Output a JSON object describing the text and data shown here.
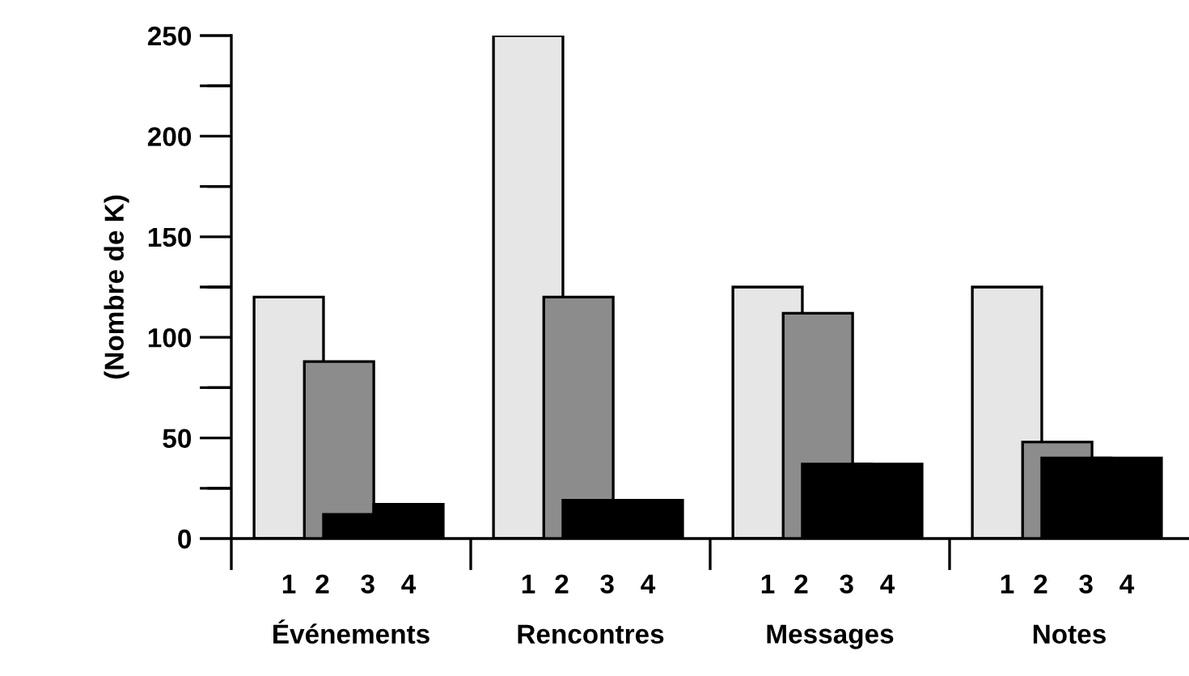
{
  "chart_data": {
    "type": "bar",
    "ylabel": "(Nombre de K)",
    "categories": [
      "Événements",
      "Rencontres",
      "Messages",
      "Notes"
    ],
    "series": [
      {
        "name": "1",
        "color": "#e6e6e6",
        "values": [
          120,
          250,
          125,
          125
        ]
      },
      {
        "name": "2",
        "color": "#8c8c8c",
        "values": [
          88,
          120,
          112,
          48
        ]
      },
      {
        "name": "3",
        "color": "#000000",
        "values": [
          12,
          19,
          37,
          40
        ]
      },
      {
        "name": "4",
        "color": "#000000",
        "values": [
          17,
          19,
          37,
          40
        ]
      }
    ],
    "ylim": [
      0,
      250
    ],
    "yticks": [
      0,
      {
        "value": 25,
        "label": null
      },
      50,
      {
        "value": 75,
        "label": null
      },
      100,
      {
        "value": 125,
        "label": null
      },
      150,
      {
        "value": 175,
        "label": null
      },
      200,
      {
        "value": 225,
        "label": null
      },
      250
    ],
    "grid": false,
    "legend": false
  }
}
